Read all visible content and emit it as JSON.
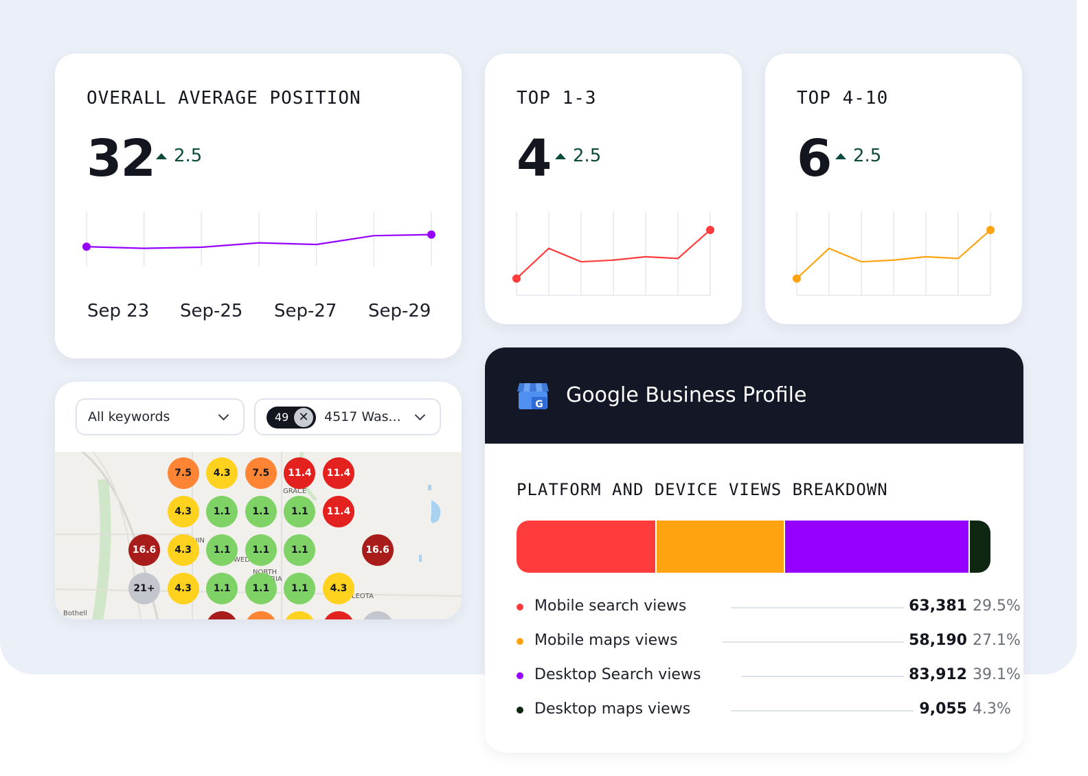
{
  "colors": {
    "purple": "#9600ff",
    "red": "#ff3b3b",
    "orange": "#ffa311",
    "dark_green": "#0f2613",
    "delta_green": "#0b4a3c",
    "header_dark": "#131726"
  },
  "overall": {
    "title": "OVERALL AVERAGE POSITION",
    "value": "32",
    "delta": "2.5",
    "delta_icon": "triangle-up-icon",
    "x_labels": [
      "Sep 23",
      "Sep-25",
      "Sep-27",
      "Sep-29"
    ]
  },
  "top13": {
    "title": "TOP 1-3",
    "value": "4",
    "delta": "2.5"
  },
  "top410": {
    "title": "TOP 4-10",
    "value": "6",
    "delta": "2.5"
  },
  "chart_data": [
    {
      "type": "line",
      "title": "OVERALL AVERAGE POSITION",
      "categories": [
        "Sep 23",
        "",
        "Sep-25",
        "",
        "Sep-27",
        "",
        "Sep-29"
      ],
      "values": [
        3.6,
        3.3,
        3.5,
        4.3,
        4.0,
        5.6,
        5.8
      ],
      "ylim": [
        0,
        10
      ],
      "color": "#9600ff",
      "grid": "vertical"
    },
    {
      "type": "line",
      "title": "TOP 1-3",
      "values": [
        1.0,
        2.8,
        2.0,
        2.1,
        2.3,
        2.2,
        3.9
      ],
      "ylim": [
        0,
        5
      ],
      "color": "#ff3b3b",
      "grid": "vertical"
    },
    {
      "type": "line",
      "title": "TOP 4-10",
      "values": [
        1.0,
        2.8,
        2.0,
        2.1,
        2.3,
        2.2,
        3.9
      ],
      "ylim": [
        0,
        5
      ],
      "color": "#ffa311",
      "grid": "vertical"
    },
    {
      "type": "bar",
      "title": "PLATFORM AND DEVICE VIEWS BREAKDOWN",
      "stacked": true,
      "categories": [
        "Mobile search views",
        "Mobile maps views",
        "Desktop Search views",
        "Desktop maps views"
      ],
      "values": [
        63381,
        58190,
        83912,
        9055
      ],
      "percent": [
        29.5,
        27.1,
        39.1,
        4.3
      ]
    }
  ],
  "filters": {
    "keywords_label": "All keywords",
    "location_count": "49",
    "location_label": "4517 Was...",
    "clear_icon": "close-icon",
    "chevron_icon": "chevron-down-icon"
  },
  "map": {
    "labels": [
      "GRACE",
      "NORTH",
      "LEOTA",
      "Bothell",
      "NIN",
      "WED",
      "RIA"
    ],
    "rows": [
      [
        "",
        "7.5",
        "4.3",
        "7.5",
        "11.4",
        "11.4",
        ""
      ],
      [
        "",
        "4.3",
        "1.1",
        "1.1",
        "1.1",
        "11.4",
        ""
      ],
      [
        "16.6",
        "4.3",
        "1.1",
        "1.1",
        "1.1",
        "",
        "16.6"
      ],
      [
        "21+",
        "4.3",
        "1.1",
        "1.1",
        "1.1",
        "4.3",
        ""
      ],
      [
        "",
        "",
        "",
        "",
        "",
        "",
        ""
      ]
    ]
  },
  "gbp": {
    "title": "Google Business Profile",
    "icon": "google-store-icon",
    "breakdown_title": "PLATFORM AND DEVICE VIEWS BREAKDOWN",
    "items": [
      {
        "label": "Mobile search views",
        "value": "63,381",
        "pct": "29.5%",
        "color": "#ff3b3b"
      },
      {
        "label": "Mobile maps views",
        "value": "58,190",
        "pct": "27.1%",
        "color": "#ffa311"
      },
      {
        "label": "Desktop Search views",
        "value": "83,912",
        "pct": "39.1%",
        "color": "#9600ff"
      },
      {
        "label": "Desktop maps views",
        "value": "9,055",
        "pct": "4.3%",
        "color": "#0f2613"
      }
    ]
  }
}
